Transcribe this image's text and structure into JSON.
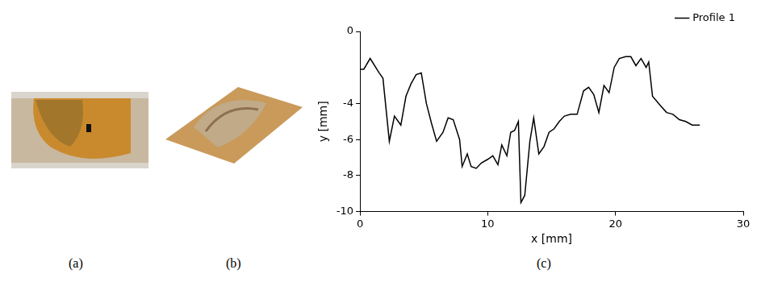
{
  "panel_labels": [
    "(a)",
    "(b)",
    "(c)"
  ],
  "chart_data": {
    "type": "line",
    "x_label": "x [mm]",
    "y_label": "y [mm]",
    "x": [
      0,
      0.3,
      0.8,
      1.5,
      1.8,
      2.3,
      2.7,
      3.2,
      3.6,
      4.0,
      4.4,
      4.8,
      5.2,
      5.6,
      6.0,
      6.5,
      6.9,
      7.3,
      7.8,
      8.0,
      8.4,
      8.7,
      9.1,
      9.5,
      10.0,
      10.4,
      10.8,
      11.1,
      11.5,
      11.8,
      12.1,
      12.4,
      12.6,
      12.9,
      13.3,
      13.6,
      14.0,
      14.4,
      14.8,
      15.2,
      15.6,
      16.0,
      16.5,
      17.0,
      17.5,
      17.9,
      18.3,
      18.7,
      19.1,
      19.5,
      19.9,
      20.3,
      20.8,
      21.2,
      21.6,
      22.0,
      22.4,
      22.6,
      22.9,
      23.5,
      24.0,
      24.5,
      25.0,
      25.5,
      26.0,
      26.6
    ],
    "series": [
      {
        "name": "Profile 1",
        "color": "#000000",
        "values": [
          -2.1,
          -2.1,
          -1.5,
          -2.3,
          -2.6,
          -6.1,
          -4.7,
          -5.2,
          -3.6,
          -2.9,
          -2.4,
          -2.3,
          -4.0,
          -5.1,
          -6.1,
          -5.6,
          -4.8,
          -4.9,
          -6.0,
          -7.5,
          -6.8,
          -7.5,
          -7.6,
          -7.3,
          -7.1,
          -6.9,
          -7.4,
          -6.3,
          -6.9,
          -5.6,
          -5.5,
          -5.0,
          -9.5,
          -9.1,
          -6.1,
          -4.8,
          -6.8,
          -6.4,
          -5.6,
          -5.4,
          -5.0,
          -4.7,
          -4.6,
          -4.6,
          -3.3,
          -3.1,
          -3.5,
          -4.5,
          -3.0,
          -3.4,
          -2.0,
          -1.5,
          -1.4,
          -1.4,
          -1.9,
          -1.5,
          -2.0,
          -1.7,
          -3.6,
          -4.1,
          -4.5,
          -4.6,
          -4.9,
          -5.0,
          -5.2,
          -5.2
        ]
      }
    ],
    "xlim": [
      0,
      30
    ],
    "xticks": [
      0,
      10,
      20,
      30
    ],
    "ylim": [
      -10,
      0
    ],
    "yticks": [
      -10,
      -8,
      -6,
      -4,
      0
    ],
    "grid": false,
    "legend": "top right"
  }
}
